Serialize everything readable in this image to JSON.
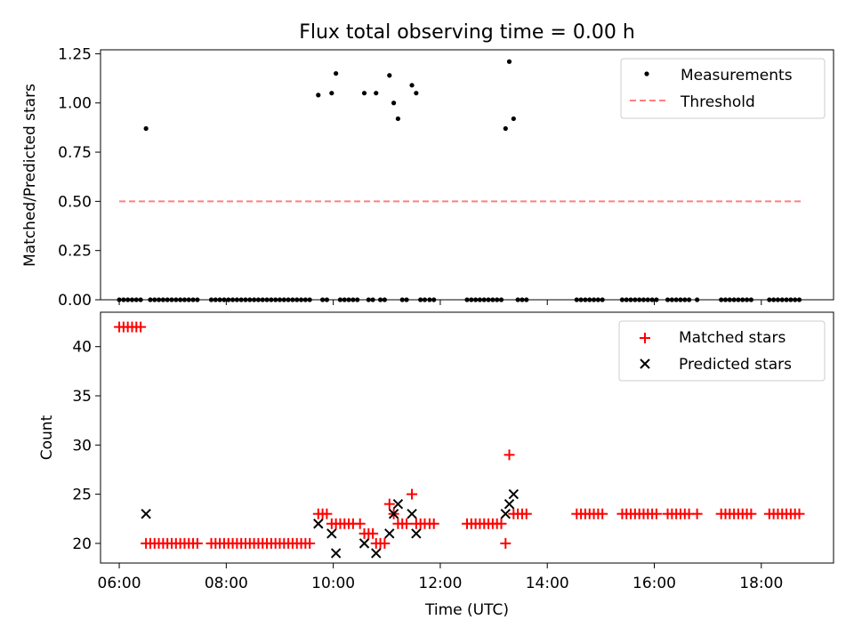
{
  "chart_data": [
    {
      "type": "scatter",
      "title": "Flux total observing time = 0.00 h",
      "xlabel": "",
      "ylabel": "Matched/Predicted stars",
      "ylim": [
        0,
        1.27
      ],
      "yticks": [
        "0.00",
        "0.25",
        "0.50",
        "0.75",
        "1.00",
        "1.25"
      ],
      "ytick_values": [
        0,
        0.25,
        0.5,
        0.75,
        1.0,
        1.25
      ],
      "xlim_hours": [
        5.65,
        19.35
      ],
      "legend": "top-right",
      "series": [
        {
          "name": "Measurements",
          "color": "#000000",
          "points": [
            [
              6.0,
              0
            ],
            [
              6.08,
              0
            ],
            [
              6.16,
              0
            ],
            [
              6.24,
              0
            ],
            [
              6.32,
              0
            ],
            [
              6.4,
              0
            ],
            [
              6.5,
              0.87
            ],
            [
              6.58,
              0
            ],
            [
              6.66,
              0
            ],
            [
              6.74,
              0
            ],
            [
              6.82,
              0
            ],
            [
              6.9,
              0
            ],
            [
              6.98,
              0
            ],
            [
              7.06,
              0
            ],
            [
              7.14,
              0
            ],
            [
              7.22,
              0
            ],
            [
              7.3,
              0
            ],
            [
              7.38,
              0
            ],
            [
              7.46,
              0
            ],
            [
              7.72,
              0
            ],
            [
              7.8,
              0
            ],
            [
              7.88,
              0
            ],
            [
              7.96,
              0
            ],
            [
              8.04,
              0
            ],
            [
              8.12,
              0
            ],
            [
              8.2,
              0
            ],
            [
              8.28,
              0
            ],
            [
              8.36,
              0
            ],
            [
              8.44,
              0
            ],
            [
              8.52,
              0
            ],
            [
              8.6,
              0
            ],
            [
              8.68,
              0
            ],
            [
              8.76,
              0
            ],
            [
              8.84,
              0
            ],
            [
              8.92,
              0
            ],
            [
              9.0,
              0
            ],
            [
              9.08,
              0
            ],
            [
              9.16,
              0
            ],
            [
              9.24,
              0
            ],
            [
              9.32,
              0
            ],
            [
              9.4,
              0
            ],
            [
              9.48,
              0
            ],
            [
              9.56,
              0
            ],
            [
              9.72,
              1.04
            ],
            [
              9.8,
              0
            ],
            [
              9.88,
              0
            ],
            [
              9.97,
              1.05
            ],
            [
              10.05,
              1.15
            ],
            [
              10.13,
              0
            ],
            [
              10.21,
              0
            ],
            [
              10.29,
              0
            ],
            [
              10.37,
              0
            ],
            [
              10.45,
              0
            ],
            [
              10.58,
              1.05
            ],
            [
              10.66,
              0
            ],
            [
              10.74,
              0
            ],
            [
              10.8,
              1.05
            ],
            [
              10.88,
              0
            ],
            [
              10.96,
              0
            ],
            [
              11.05,
              1.14
            ],
            [
              11.13,
              1.0
            ],
            [
              11.21,
              0.92
            ],
            [
              11.29,
              0
            ],
            [
              11.37,
              0
            ],
            [
              11.47,
              1.09
            ],
            [
              11.55,
              1.05
            ],
            [
              11.63,
              0
            ],
            [
              11.71,
              0
            ],
            [
              11.8,
              0
            ],
            [
              11.88,
              0
            ],
            [
              12.5,
              0
            ],
            [
              12.58,
              0
            ],
            [
              12.66,
              0
            ],
            [
              12.74,
              0
            ],
            [
              12.82,
              0
            ],
            [
              12.9,
              0
            ],
            [
              12.98,
              0
            ],
            [
              13.06,
              0
            ],
            [
              13.14,
              0
            ],
            [
              13.22,
              0.87
            ],
            [
              13.29,
              1.21
            ],
            [
              13.37,
              0.92
            ],
            [
              13.45,
              0
            ],
            [
              13.53,
              0
            ],
            [
              13.61,
              0
            ],
            [
              14.55,
              0
            ],
            [
              14.63,
              0
            ],
            [
              14.71,
              0
            ],
            [
              14.79,
              0
            ],
            [
              14.87,
              0
            ],
            [
              14.95,
              0
            ],
            [
              15.03,
              0
            ],
            [
              15.4,
              0
            ],
            [
              15.48,
              0
            ],
            [
              15.56,
              0
            ],
            [
              15.64,
              0
            ],
            [
              15.72,
              0
            ],
            [
              15.8,
              0
            ],
            [
              15.88,
              0
            ],
            [
              15.96,
              0
            ],
            [
              16.04,
              0
            ],
            [
              16.25,
              0
            ],
            [
              16.33,
              0
            ],
            [
              16.41,
              0
            ],
            [
              16.49,
              0
            ],
            [
              16.57,
              0
            ],
            [
              16.65,
              0
            ],
            [
              16.8,
              0
            ],
            [
              17.25,
              0
            ],
            [
              17.33,
              0
            ],
            [
              17.41,
              0
            ],
            [
              17.49,
              0
            ],
            [
              17.57,
              0
            ],
            [
              17.65,
              0
            ],
            [
              17.73,
              0
            ],
            [
              17.81,
              0
            ],
            [
              18.15,
              0
            ],
            [
              18.23,
              0
            ],
            [
              18.31,
              0
            ],
            [
              18.39,
              0
            ],
            [
              18.47,
              0
            ],
            [
              18.55,
              0
            ],
            [
              18.63,
              0
            ],
            [
              18.71,
              0
            ]
          ]
        },
        {
          "name": "Threshold",
          "color": "#ff7f7f",
          "style": "dashed",
          "points": [
            [
              6.0,
              0.5
            ],
            [
              18.75,
              0.5
            ]
          ]
        }
      ]
    },
    {
      "type": "scatter",
      "title": "",
      "xlabel": "Time (UTC)",
      "ylabel": "Count",
      "ylim": [
        18,
        43.5
      ],
      "yticks": [
        "20",
        "25",
        "30",
        "35",
        "40"
      ],
      "ytick_values": [
        20,
        25,
        30,
        35,
        40
      ],
      "xlim_hours": [
        5.65,
        19.35
      ],
      "xticks": [
        "06:00",
        "08:00",
        "10:00",
        "12:00",
        "14:00",
        "16:00",
        "18:00"
      ],
      "xtick_values": [
        6,
        8,
        10,
        12,
        14,
        16,
        18
      ],
      "legend": "top-right",
      "series": [
        {
          "name": "Matched stars",
          "color": "#ff0000",
          "marker": "plus",
          "points": [
            [
              6.0,
              42
            ],
            [
              6.08,
              42
            ],
            [
              6.16,
              42
            ],
            [
              6.24,
              42
            ],
            [
              6.32,
              42
            ],
            [
              6.4,
              42
            ],
            [
              6.5,
              20
            ],
            [
              6.58,
              20
            ],
            [
              6.66,
              20
            ],
            [
              6.74,
              20
            ],
            [
              6.82,
              20
            ],
            [
              6.9,
              20
            ],
            [
              6.98,
              20
            ],
            [
              7.06,
              20
            ],
            [
              7.14,
              20
            ],
            [
              7.22,
              20
            ],
            [
              7.3,
              20
            ],
            [
              7.38,
              20
            ],
            [
              7.46,
              20
            ],
            [
              7.72,
              20
            ],
            [
              7.8,
              20
            ],
            [
              7.88,
              20
            ],
            [
              7.96,
              20
            ],
            [
              8.04,
              20
            ],
            [
              8.12,
              20
            ],
            [
              8.2,
              20
            ],
            [
              8.28,
              20
            ],
            [
              8.36,
              20
            ],
            [
              8.44,
              20
            ],
            [
              8.52,
              20
            ],
            [
              8.6,
              20
            ],
            [
              8.68,
              20
            ],
            [
              8.76,
              20
            ],
            [
              8.84,
              20
            ],
            [
              8.92,
              20
            ],
            [
              9.0,
              20
            ],
            [
              9.08,
              20
            ],
            [
              9.16,
              20
            ],
            [
              9.24,
              20
            ],
            [
              9.32,
              20
            ],
            [
              9.4,
              20
            ],
            [
              9.48,
              20
            ],
            [
              9.56,
              20
            ],
            [
              9.72,
              23
            ],
            [
              9.8,
              23
            ],
            [
              9.88,
              23
            ],
            [
              9.97,
              22
            ],
            [
              10.05,
              22
            ],
            [
              10.13,
              22
            ],
            [
              10.21,
              22
            ],
            [
              10.29,
              22
            ],
            [
              10.37,
              22
            ],
            [
              10.5,
              22
            ],
            [
              10.58,
              21
            ],
            [
              10.66,
              21
            ],
            [
              10.74,
              21
            ],
            [
              10.8,
              20
            ],
            [
              10.88,
              20
            ],
            [
              10.96,
              20
            ],
            [
              11.05,
              24
            ],
            [
              11.13,
              23
            ],
            [
              11.21,
              22
            ],
            [
              11.29,
              22
            ],
            [
              11.37,
              22
            ],
            [
              11.47,
              25
            ],
            [
              11.55,
              22
            ],
            [
              11.63,
              22
            ],
            [
              11.71,
              22
            ],
            [
              11.8,
              22
            ],
            [
              11.88,
              22
            ],
            [
              12.5,
              22
            ],
            [
              12.58,
              22
            ],
            [
              12.66,
              22
            ],
            [
              12.74,
              22
            ],
            [
              12.82,
              22
            ],
            [
              12.9,
              22
            ],
            [
              12.98,
              22
            ],
            [
              13.06,
              22
            ],
            [
              13.14,
              22
            ],
            [
              13.22,
              20
            ],
            [
              13.29,
              29
            ],
            [
              13.37,
              23
            ],
            [
              13.45,
              23
            ],
            [
              13.53,
              23
            ],
            [
              13.61,
              23
            ],
            [
              14.55,
              23
            ],
            [
              14.63,
              23
            ],
            [
              14.71,
              23
            ],
            [
              14.79,
              23
            ],
            [
              14.87,
              23
            ],
            [
              14.95,
              23
            ],
            [
              15.03,
              23
            ],
            [
              15.4,
              23
            ],
            [
              15.48,
              23
            ],
            [
              15.56,
              23
            ],
            [
              15.64,
              23
            ],
            [
              15.72,
              23
            ],
            [
              15.8,
              23
            ],
            [
              15.88,
              23
            ],
            [
              15.96,
              23
            ],
            [
              16.04,
              23
            ],
            [
              16.25,
              23
            ],
            [
              16.33,
              23
            ],
            [
              16.41,
              23
            ],
            [
              16.49,
              23
            ],
            [
              16.57,
              23
            ],
            [
              16.65,
              23
            ],
            [
              16.8,
              23
            ],
            [
              17.25,
              23
            ],
            [
              17.33,
              23
            ],
            [
              17.41,
              23
            ],
            [
              17.49,
              23
            ],
            [
              17.57,
              23
            ],
            [
              17.65,
              23
            ],
            [
              17.73,
              23
            ],
            [
              17.81,
              23
            ],
            [
              18.15,
              23
            ],
            [
              18.23,
              23
            ],
            [
              18.31,
              23
            ],
            [
              18.39,
              23
            ],
            [
              18.47,
              23
            ],
            [
              18.55,
              23
            ],
            [
              18.63,
              23
            ],
            [
              18.71,
              23
            ]
          ]
        },
        {
          "name": "Predicted stars",
          "color": "#000000",
          "marker": "x",
          "points": [
            [
              6.5,
              23
            ],
            [
              9.72,
              22
            ],
            [
              9.97,
              21
            ],
            [
              10.05,
              19
            ],
            [
              10.58,
              20
            ],
            [
              10.8,
              19
            ],
            [
              11.05,
              21
            ],
            [
              11.13,
              23
            ],
            [
              11.21,
              24
            ],
            [
              11.47,
              23
            ],
            [
              11.55,
              21
            ],
            [
              13.22,
              23
            ],
            [
              13.29,
              24
            ],
            [
              13.37,
              25
            ]
          ]
        }
      ]
    }
  ]
}
